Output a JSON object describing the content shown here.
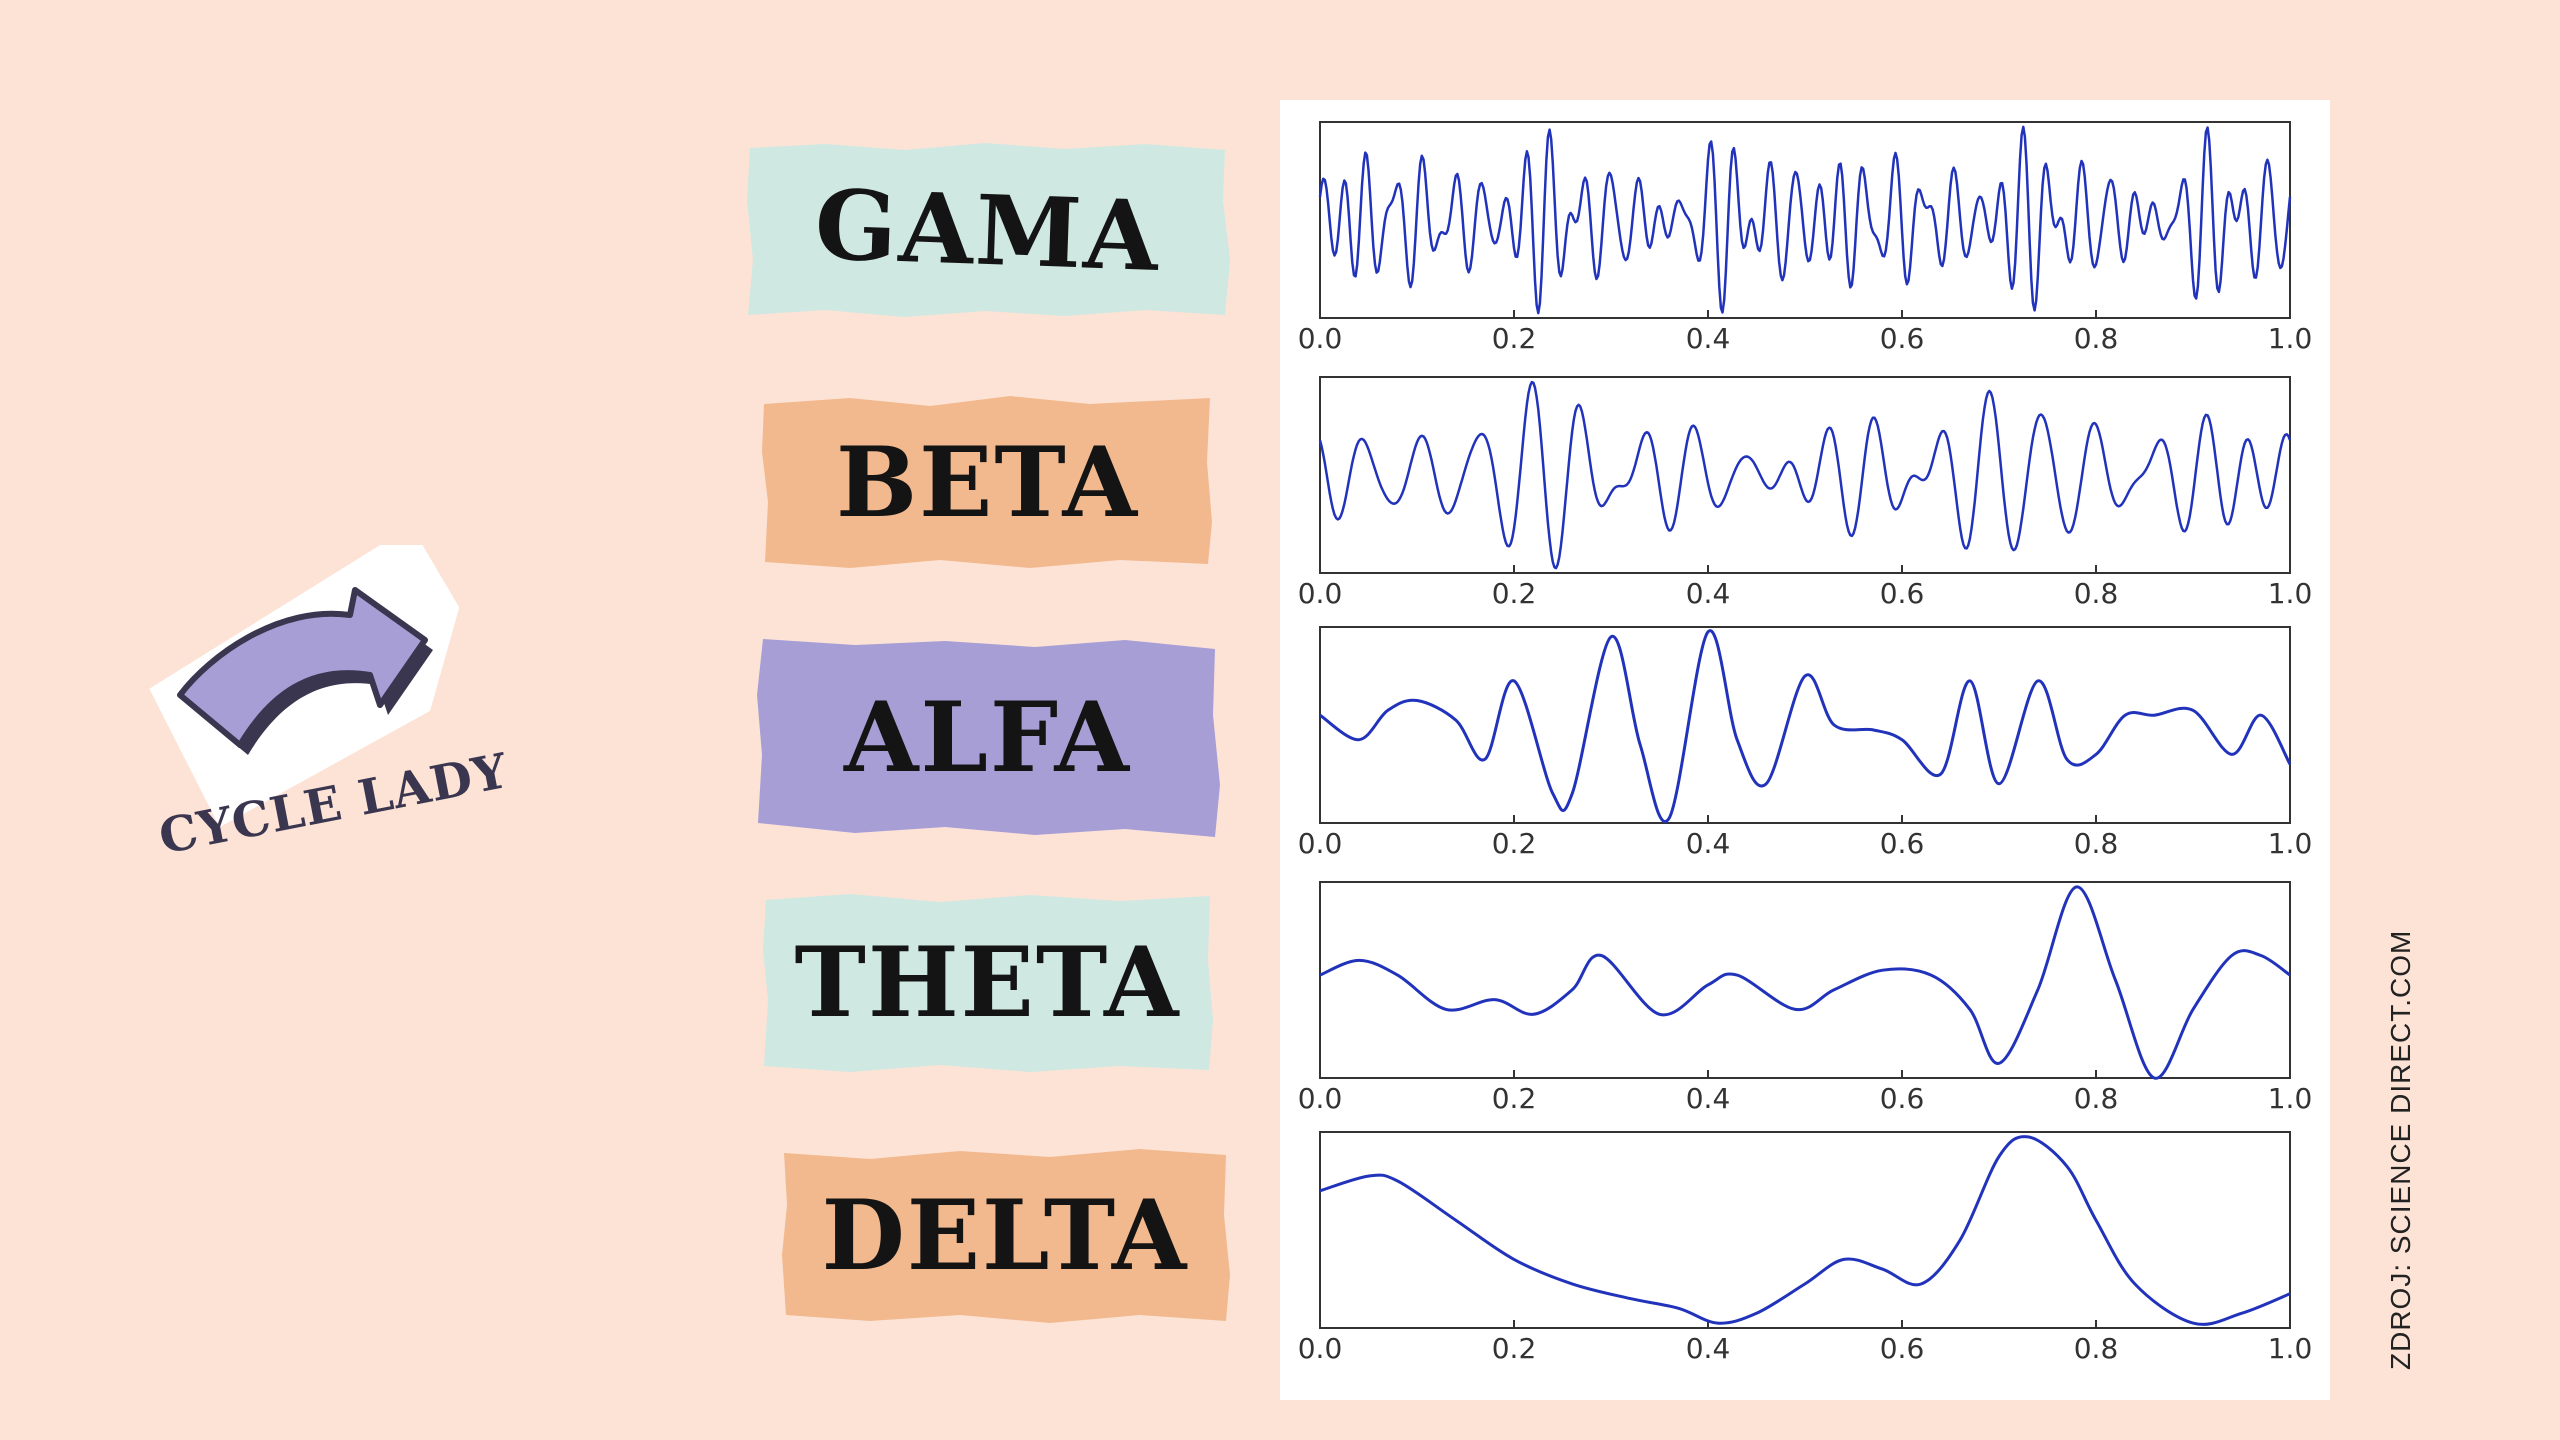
{
  "labels": {
    "gama": "GAMA",
    "beta": "BETA",
    "alfa": "ALFA",
    "theta": "THETA",
    "delta": "DELTA"
  },
  "logo": {
    "text": "CYCLE LADY",
    "icon": "curved-arrow-icon"
  },
  "source": "ZDROJ:  SCIENCE DIRECT.COM",
  "colors": {
    "background": "#fce3d6",
    "mint": "#cfe8e2",
    "peach": "#f2b98f",
    "lavender": "#a79ed6",
    "line": "#2233bb",
    "logo_purple": "#a79ed6",
    "logo_dark": "#3a3650"
  },
  "chart_data": [
    {
      "type": "line",
      "name_label": "GAMA",
      "xlim": [
        0,
        1
      ],
      "ylim": [
        -1,
        1
      ],
      "xticks": [
        "0.0",
        "0.2",
        "0.4",
        "0.6",
        "0.8",
        "1.0"
      ],
      "signal": {
        "seed": 11,
        "components": [
          [
            31,
            0.28
          ],
          [
            37,
            0.25
          ],
          [
            43,
            0.22
          ],
          [
            47,
            0.2
          ],
          [
            53,
            0.18
          ]
        ]
      }
    },
    {
      "type": "line",
      "name_label": "BETA",
      "xlim": [
        0,
        1
      ],
      "ylim": [
        -1,
        1
      ],
      "xticks": [
        "0.0",
        "0.2",
        "0.4",
        "0.6",
        "0.8",
        "1.0"
      ],
      "signal": {
        "seed": 7,
        "components": [
          [
            17,
            0.35
          ],
          [
            19,
            0.3
          ],
          [
            23,
            0.25
          ],
          [
            26,
            0.18
          ]
        ]
      }
    },
    {
      "type": "line",
      "name_label": "ALFA",
      "xlim": [
        0,
        1
      ],
      "ylim": [
        -1,
        1
      ],
      "xticks": [
        "0.0",
        "0.2",
        "0.4",
        "0.6",
        "0.8",
        "1.0"
      ],
      "x": [
        0,
        0.04,
        0.07,
        0.1,
        0.14,
        0.17,
        0.2,
        0.24,
        0.26,
        0.3,
        0.33,
        0.36,
        0.4,
        0.43,
        0.46,
        0.5,
        0.53,
        0.57,
        0.6,
        0.64,
        0.67,
        0.7,
        0.74,
        0.77,
        0.8,
        0.83,
        0.86,
        0.9,
        0.94,
        0.97,
        1.0
      ],
      "y": [
        0.1,
        -0.15,
        0.15,
        0.25,
        0.05,
        -0.35,
        0.45,
        -0.7,
        -0.7,
        0.9,
        -0.2,
        -0.95,
        0.95,
        -0.15,
        -0.6,
        0.5,
        0.0,
        -0.05,
        -0.15,
        -0.5,
        0.45,
        -0.6,
        0.45,
        -0.35,
        -0.3,
        0.1,
        0.1,
        0.15,
        -0.3,
        0.1,
        -0.4
      ]
    },
    {
      "type": "line",
      "name_label": "THETA",
      "xlim": [
        0,
        1
      ],
      "ylim": [
        -1,
        1
      ],
      "xticks": [
        "0.0",
        "0.2",
        "0.4",
        "0.6",
        "0.8",
        "1.0"
      ],
      "x": [
        0,
        0.04,
        0.08,
        0.13,
        0.18,
        0.22,
        0.26,
        0.29,
        0.35,
        0.4,
        0.43,
        0.49,
        0.53,
        0.58,
        0.63,
        0.67,
        0.7,
        0.74,
        0.78,
        0.82,
        0.86,
        0.9,
        0.94,
        0.97,
        1.0
      ],
      "y": [
        0.05,
        0.2,
        0.05,
        -0.3,
        -0.2,
        -0.35,
        -0.1,
        0.25,
        -0.35,
        -0.05,
        0.05,
        -0.3,
        -0.1,
        0.1,
        0.05,
        -0.3,
        -0.85,
        -0.1,
        0.95,
        0.0,
        -1.0,
        -0.3,
        0.25,
        0.25,
        0.05
      ]
    },
    {
      "type": "line",
      "name_label": "DELTA",
      "xlim": [
        0,
        1
      ],
      "ylim": [
        -1,
        1
      ],
      "xticks": [
        "0.0",
        "0.2",
        "0.4",
        "0.6",
        "0.8",
        "1.0"
      ],
      "x": [
        0,
        0.05,
        0.08,
        0.14,
        0.2,
        0.26,
        0.32,
        0.37,
        0.41,
        0.45,
        0.5,
        0.54,
        0.58,
        0.62,
        0.66,
        0.7,
        0.73,
        0.77,
        0.8,
        0.84,
        0.9,
        0.95,
        1.0
      ],
      "y": [
        0.4,
        0.55,
        0.5,
        0.1,
        -0.3,
        -0.55,
        -0.7,
        -0.8,
        -0.95,
        -0.85,
        -0.55,
        -0.3,
        -0.4,
        -0.55,
        -0.1,
        0.75,
        0.95,
        0.65,
        0.1,
        -0.55,
        -0.95,
        -0.85,
        -0.65
      ]
    }
  ]
}
